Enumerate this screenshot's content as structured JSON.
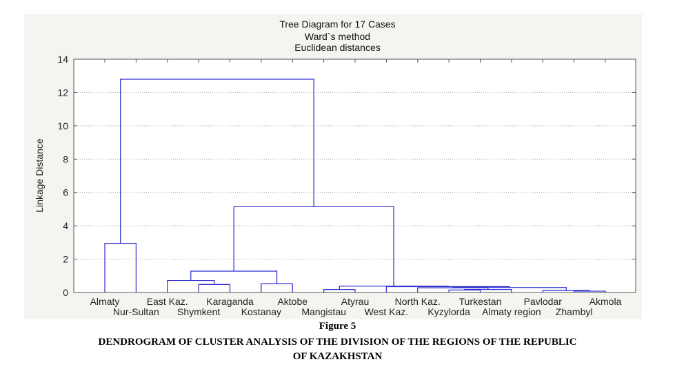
{
  "figure": {
    "label": "Figure 5",
    "caption_line1": "DENDROGRAM OF CLUSTER ANALYSIS OF THE DIVISION OF THE REGIONS OF THE REPUBLIC",
    "caption_line2": "OF KAZAKHSTAN"
  },
  "chart_data": {
    "type": "dendrogram",
    "title": "Tree Diagram for 17 Cases",
    "subtitle_1": "Ward`s method",
    "subtitle_2": "Euclidean distances",
    "ylabel": "Linkage Distance",
    "ylim": [
      0,
      14
    ],
    "yticks": [
      0,
      2,
      4,
      6,
      8,
      10,
      12,
      14
    ],
    "grid": true,
    "line_color": "#2a2ad0",
    "leaves": [
      "Almaty",
      "Nur-Sultan",
      "East Kaz.",
      "Shymkent",
      "Karaganda",
      "Kostanay",
      "Aktobe",
      "Mangistau",
      "Atyrau",
      "West Kaz.",
      "North Kaz.",
      "Kyzylorda",
      "Turkestan",
      "Almaty region",
      "Pavlodar",
      "Zhambyl",
      "Akmola"
    ],
    "merges": [
      {
        "a": "Almaty",
        "b": "Nur-Sultan",
        "height": 2.95
      },
      {
        "a": "Shymkent",
        "b": "Karaganda",
        "height": 0.48
      },
      {
        "a": "East Kaz.",
        "b": "Shymkent+Karaganda",
        "height": 0.72
      },
      {
        "a": "Kostanay",
        "b": "Aktobe",
        "height": 0.52
      },
      {
        "a": "East Kaz.+Shymkent+Karaganda",
        "b": "Kostanay+Aktobe",
        "height": 1.28
      },
      {
        "a": "Mangistau",
        "b": "Atyrau",
        "height": 0.18
      },
      {
        "a": "Kyzylorda",
        "b": "Turkestan",
        "height": 0.15
      },
      {
        "a": "Kyzylorda+Turkestan",
        "b": "Almaty region",
        "height": 0.18
      },
      {
        "a": "North Kaz.",
        "b": "Kyzylorda+Turkestan+Almaty region",
        "height": 0.28
      },
      {
        "a": "Zhambyl",
        "b": "Akmola",
        "height": 0.08
      },
      {
        "a": "Pavlodar",
        "b": "Zhambyl+Akmola",
        "height": 0.12
      },
      {
        "a": "North Kaz.+Kyzylorda+Turkestan+Almaty region",
        "b": "Pavlodar+Zhambyl+Akmola",
        "height": 0.3
      },
      {
        "a": "West Kaz.",
        "b": "North Kaz.+Kyzylorda+Turkestan+Almaty region+Pavlodar+Zhambyl+Akmola",
        "height": 0.35
      },
      {
        "a": "Mangistau+Atyrau",
        "b": "West Kaz.+North Kaz.+Kyzylorda+Turkestan+Almaty region+Pavlodar+Zhambyl+Akmola",
        "height": 0.38
      },
      {
        "a": "East Kaz.+Shymkent+Karaganda+Kostanay+Aktobe",
        "b": "Mangistau+Atyrau+West Kaz.+North Kaz.+Kyzylorda+Turkestan+Almaty region+Pavlodar+Zhambyl+Akmola",
        "height": 5.15
      },
      {
        "a": "Almaty+Nur-Sultan",
        "b": "East Kaz.+Shymkent+Karaganda+Kostanay+Aktobe+Mangistau+Atyrau+West Kaz.+North Kaz.+Kyzylorda+Turkestan+Almaty region+Pavlodar+Zhambyl+Akmola",
        "height": 12.8
      }
    ]
  }
}
